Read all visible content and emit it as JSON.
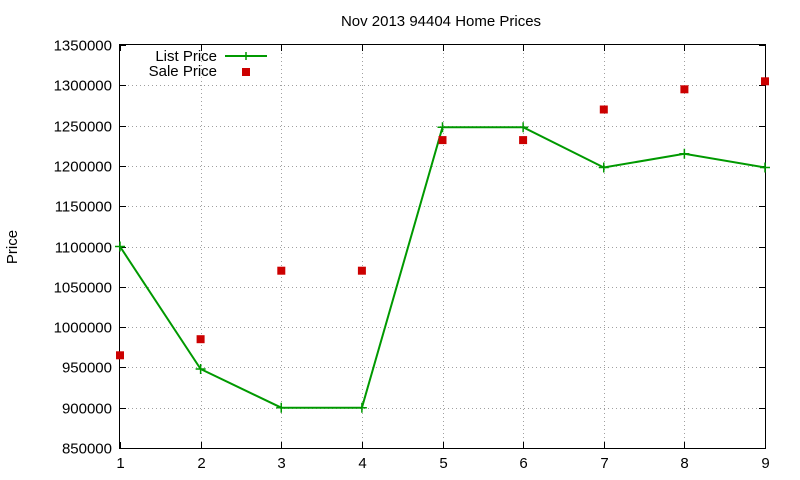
{
  "chart_data": {
    "type": "line",
    "title": "Nov 2013 94404 Home Prices",
    "xlabel": "",
    "ylabel": "Price",
    "x": [
      1,
      2,
      3,
      4,
      5,
      6,
      7,
      8,
      9
    ],
    "xlim": [
      1,
      9
    ],
    "ylim": [
      850000,
      1350000
    ],
    "xticks": [
      "1",
      "2",
      "3",
      "4",
      "5",
      "6",
      "7",
      "8",
      "9"
    ],
    "yticks": [
      "850000",
      "900000",
      "950000",
      "1000000",
      "1050000",
      "1100000",
      "1150000",
      "1200000",
      "1250000",
      "1300000",
      "1350000"
    ],
    "grid": true,
    "legend_position": "top-left",
    "series": [
      {
        "name": "List Price",
        "style": "line-with-plus-markers",
        "color": "#009900",
        "values": [
          1100000,
          948000,
          900000,
          900000,
          1248000,
          1248000,
          1198000,
          1215000,
          1198000
        ]
      },
      {
        "name": "Sale Price",
        "style": "square-markers",
        "color": "#cc0000",
        "values": [
          965000,
          985000,
          1070000,
          1070000,
          1232000,
          1232000,
          1270000,
          1295000,
          1305000
        ]
      }
    ]
  }
}
